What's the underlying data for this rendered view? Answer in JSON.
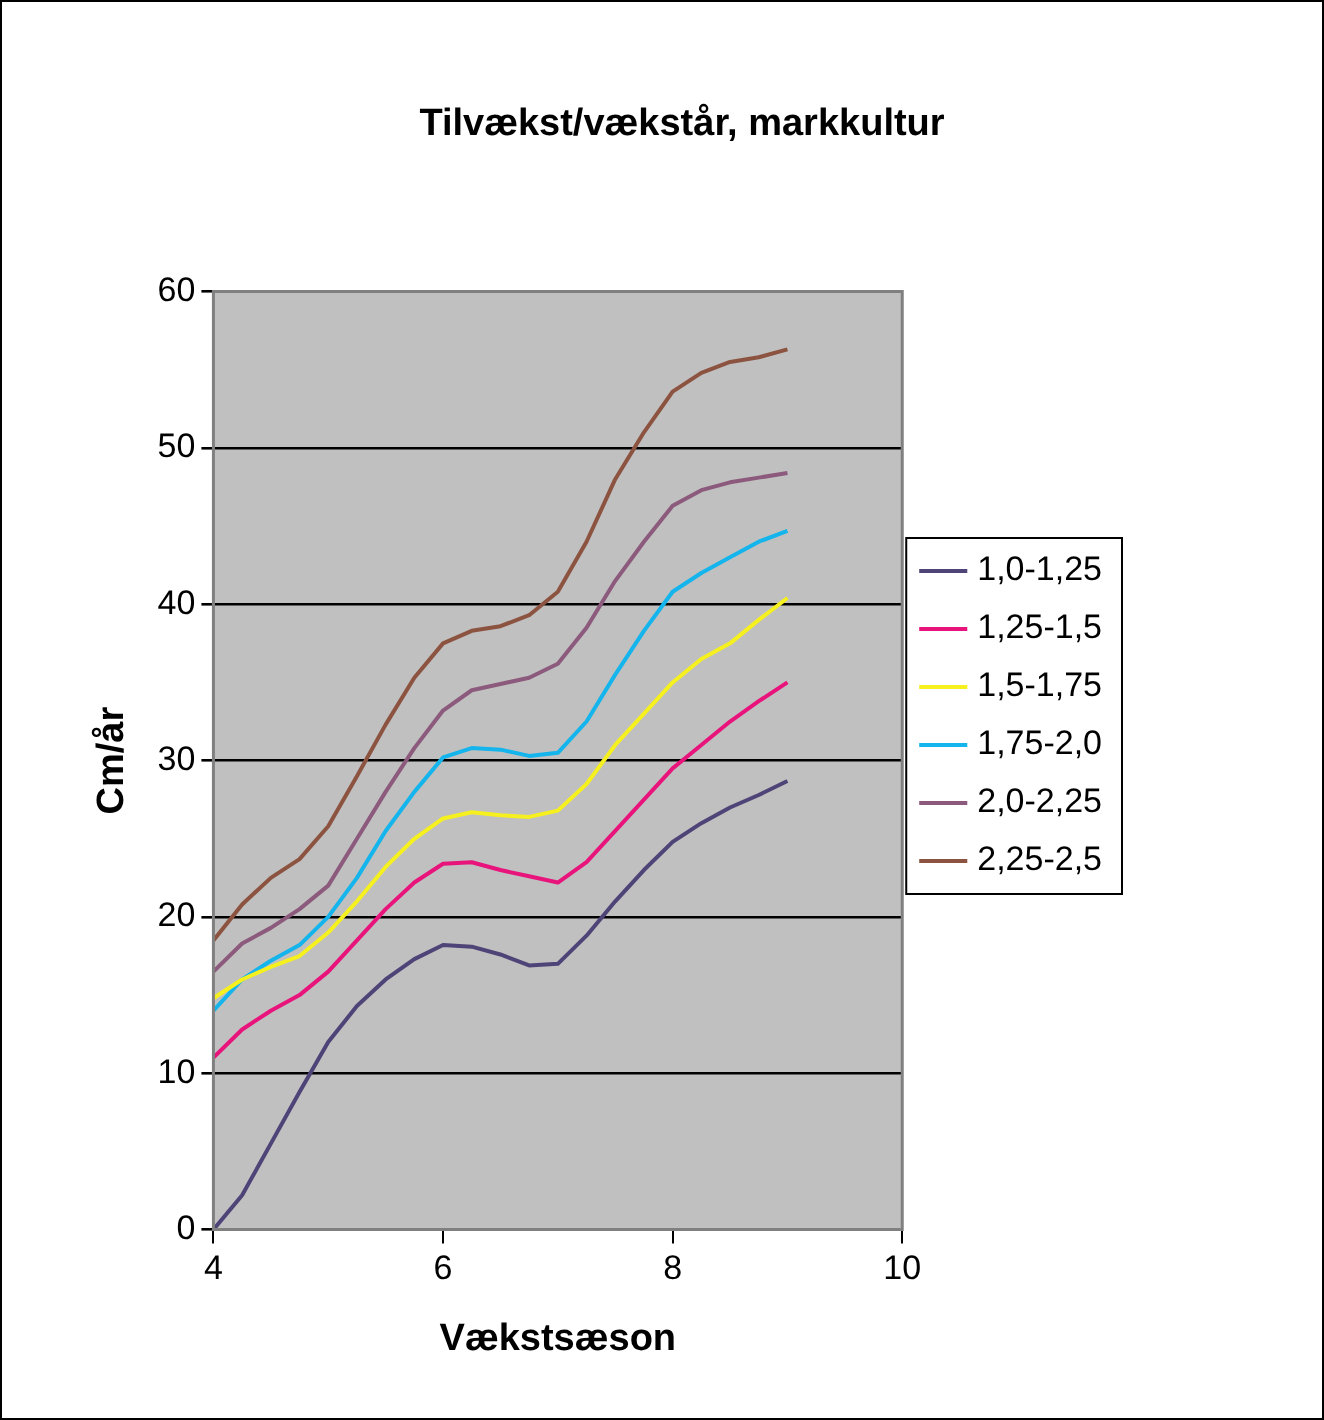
{
  "chart_data": {
    "type": "line",
    "title": "Tilvækst/vækstår, markkultur",
    "xlabel": "Vækstsæson",
    "ylabel": "Cm/år",
    "x": [
      4,
      4.25,
      4.5,
      4.75,
      5,
      5.25,
      5.5,
      5.75,
      6,
      6.25,
      6.5,
      6.75,
      7,
      7.25,
      7.5,
      7.75,
      8,
      8.25,
      8.5,
      8.75,
      9
    ],
    "xlim": [
      4,
      10
    ],
    "xticks": [
      4,
      6,
      8,
      10
    ],
    "ylim": [
      0,
      60
    ],
    "yticks": [
      0,
      10,
      20,
      30,
      40,
      50,
      60
    ],
    "grid": "y",
    "legend": "right",
    "marker": "none",
    "series": [
      {
        "name": "1,0-1,25",
        "color": "#4f4477",
        "values": [
          0,
          2.2,
          5.5,
          8.8,
          12,
          14.3,
          16,
          17.3,
          18.2,
          18.1,
          17.6,
          16.9,
          17,
          18.8,
          21,
          23,
          24.8,
          26,
          27,
          27.8,
          28.7
        ]
      },
      {
        "name": "1,25-1,5",
        "color": "#e8147c",
        "values": [
          11,
          12.8,
          14,
          15,
          16.5,
          18.5,
          20.5,
          22.2,
          23.4,
          23.5,
          23,
          22.6,
          22.2,
          23.5,
          25.5,
          27.5,
          29.5,
          31,
          32.5,
          33.8,
          35
        ]
      },
      {
        "name": "1,5-1,75",
        "color": "#f5f01e",
        "values": [
          14.8,
          16,
          16.8,
          17.5,
          19,
          21,
          23.2,
          25,
          26.3,
          26.7,
          26.5,
          26.4,
          26.8,
          28.5,
          31,
          33,
          35,
          36.5,
          37.5,
          39,
          40.4
        ]
      },
      {
        "name": "1,75-2,0",
        "color": "#14b4ec",
        "values": [
          14,
          16,
          17.2,
          18.2,
          20,
          22.5,
          25.5,
          28,
          30.2,
          30.8,
          30.7,
          30.3,
          30.5,
          32.5,
          35.5,
          38.3,
          40.8,
          42,
          43,
          44,
          44.7
        ]
      },
      {
        "name": "2,0-2,25",
        "color": "#8c5a7c",
        "values": [
          16.5,
          18.3,
          19.3,
          20.5,
          22,
          25,
          28,
          30.8,
          33.2,
          34.5,
          34.9,
          35.3,
          36.2,
          38.5,
          41.5,
          44,
          46.3,
          47.3,
          47.8,
          48.1,
          48.4
        ]
      },
      {
        "name": "2,25-2,5",
        "color": "#8c5440",
        "values": [
          18.5,
          20.8,
          22.5,
          23.7,
          25.8,
          29,
          32.3,
          35.3,
          37.5,
          38.3,
          38.6,
          39.3,
          40.8,
          44,
          48,
          51,
          53.6,
          54.8,
          55.5,
          55.8,
          56.3
        ]
      }
    ]
  }
}
